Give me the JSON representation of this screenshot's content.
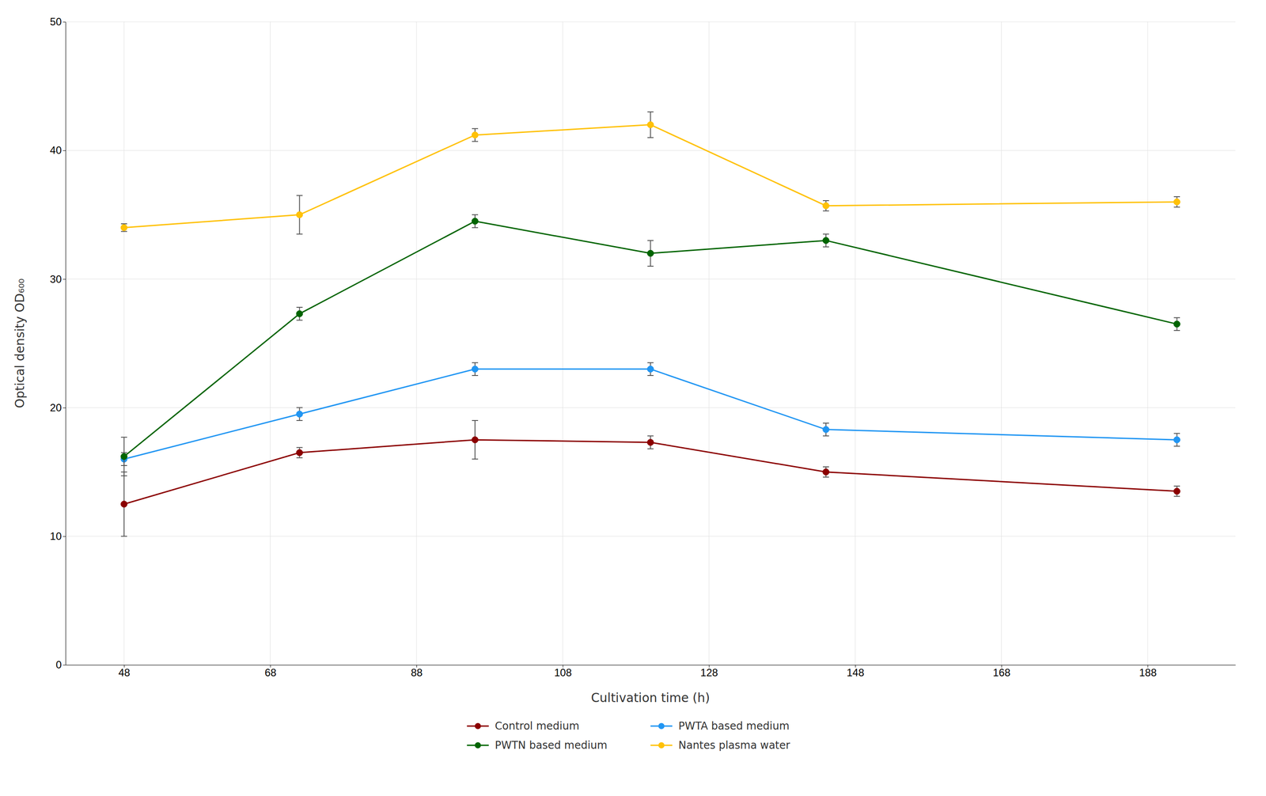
{
  "chart_data": {
    "type": "line",
    "x_label": "Cultivation time (h)",
    "y_label": "Optical density OD₆₀₀",
    "x": [
      48,
      72,
      96,
      120,
      144,
      192
    ],
    "series": [
      {
        "name": "Control medium",
        "color": "#8B0000",
        "values": [
          12.5,
          16.5,
          17.5,
          17.3,
          15.0,
          13.5
        ],
        "errors": [
          2.5,
          0.4,
          1.5,
          0.5,
          0.4,
          0.4
        ]
      },
      {
        "name": "PWTA based medium",
        "color": "#2196F3",
        "values": [
          16.0,
          19.5,
          23.0,
          23.0,
          18.3,
          17.5
        ],
        "errors": [
          0.5,
          0.5,
          0.5,
          0.5,
          0.5,
          0.5
        ]
      },
      {
        "name": "PWTN based medium",
        "color": "#006400",
        "values": [
          16.2,
          27.3,
          34.5,
          32.0,
          33.0,
          26.5
        ],
        "errors": [
          1.5,
          0.5,
          0.5,
          1.0,
          0.5,
          0.5
        ]
      },
      {
        "name": "Nantes plasma water",
        "color": "#FFC107",
        "values": [
          34.0,
          35.0,
          41.2,
          42.0,
          35.7,
          36.0
        ],
        "errors": [
          0.3,
          1.5,
          0.5,
          1.0,
          0.4,
          0.4
        ]
      }
    ],
    "xlim": [
      40,
      200
    ],
    "ylim": [
      0,
      50
    ],
    "xticks": [
      48,
      68,
      88,
      108,
      128,
      148,
      168,
      188
    ],
    "yticks": [
      0,
      10,
      20,
      30,
      40,
      50
    ],
    "grid": true,
    "legend": "bottom",
    "marker": "circle"
  }
}
